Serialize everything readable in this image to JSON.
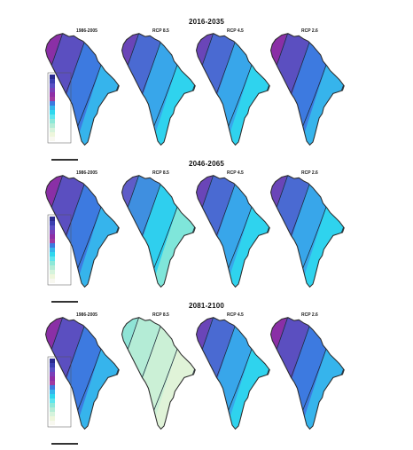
{
  "figure": {
    "periods": [
      {
        "title": "2016-2035",
        "panels": [
          {
            "label": "1986-2005",
            "palette": "wet"
          },
          {
            "label": "RCP 8.5",
            "palette": "mid"
          },
          {
            "label": "RCP 4.5",
            "palette": "mid_light"
          },
          {
            "label": "RCP 2.6",
            "palette": "wet"
          }
        ]
      },
      {
        "title": "2046-2065",
        "panels": [
          {
            "label": "1986-2005",
            "palette": "wet"
          },
          {
            "label": "RCP 8.5",
            "palette": "dry"
          },
          {
            "label": "RCP 4.5",
            "palette": "mid"
          },
          {
            "label": "RCP 2.6",
            "palette": "mid"
          }
        ]
      },
      {
        "title": "2081-2100",
        "panels": [
          {
            "label": "1986-2005",
            "palette": "wet"
          },
          {
            "label": "RCP 8.5",
            "palette": "very_dry"
          },
          {
            "label": "RCP 4.5",
            "palette": "mid"
          },
          {
            "label": "RCP 2.6",
            "palette": "wet"
          }
        ]
      }
    ],
    "palettes": {
      "wet": [
        "#8a2fa6",
        "#5b4fc0",
        "#3d7ae0",
        "#36b4ec",
        "#2fd7ee",
        "#5fe6ee"
      ],
      "mid": [
        "#6a45b8",
        "#4a6ad2",
        "#38a6ea",
        "#2fd3ee",
        "#4fe0ea",
        "#8ee8d8"
      ],
      "mid_light": [
        "#6a45b8",
        "#4a6ad2",
        "#38a6ea",
        "#2fd3ee",
        "#8fe8dc",
        "#c6efd9"
      ],
      "dry": [
        "#5f5cc8",
        "#3f8fe0",
        "#2fcfee",
        "#7fe6da",
        "#b6eed6",
        "#d6f3dc"
      ],
      "very_dry": [
        "#8fe4d6",
        "#b4ecd6",
        "#cbf0d6",
        "#e0f3d8",
        "#eef6dc",
        "#f5f8e4"
      ]
    },
    "colors": {
      "outline": "#2b2b2b",
      "contour": "#1c2a3a",
      "legend_border": "#555555"
    }
  }
}
